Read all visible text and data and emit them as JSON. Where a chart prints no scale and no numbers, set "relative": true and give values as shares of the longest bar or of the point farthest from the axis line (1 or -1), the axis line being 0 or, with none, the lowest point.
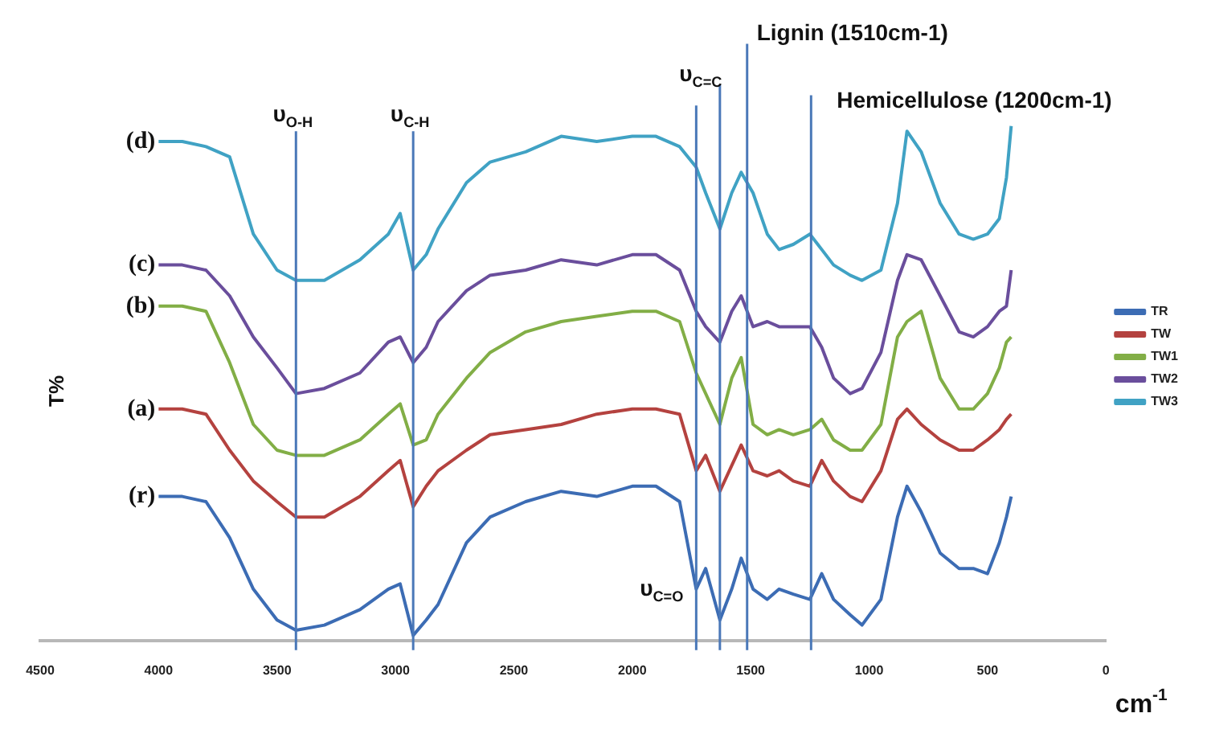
{
  "chart_data": {
    "type": "line",
    "xlabel": "cm$^{-1}$",
    "ylabel": "T%",
    "relative": true,
    "legend": "right",
    "marker": "none",
    "xlim": [
      4500,
      0
    ],
    "xticks": [
      4500,
      4000,
      3500,
      3000,
      2500,
      2000,
      1500,
      1000,
      500,
      0
    ],
    "x": [
      4000,
      3900,
      3800,
      3700,
      3600,
      3500,
      3420,
      3300,
      3150,
      3030,
      2980,
      2925,
      2870,
      2820,
      2700,
      2600,
      2450,
      2300,
      2150,
      2000,
      1900,
      1800,
      1730,
      1690,
      1630,
      1580,
      1540,
      1490,
      1430,
      1380,
      1320,
      1250,
      1200,
      1150,
      1080,
      1030,
      950,
      880,
      840,
      780,
      700,
      620,
      560,
      500,
      450,
      420,
      400
    ],
    "series": [
      {
        "name": "TR",
        "color": "#3c6cb4",
        "values": [
          0.28,
          0.28,
          0.27,
          0.2,
          0.1,
          0.04,
          0.02,
          0.03,
          0.06,
          0.1,
          0.11,
          0.01,
          0.04,
          0.07,
          0.19,
          0.24,
          0.27,
          0.29,
          0.28,
          0.3,
          0.3,
          0.27,
          0.1,
          0.14,
          0.04,
          0.1,
          0.16,
          0.1,
          0.08,
          0.1,
          0.09,
          0.08,
          0.13,
          0.08,
          0.05,
          0.03,
          0.08,
          0.24,
          0.3,
          0.25,
          0.17,
          0.14,
          0.14,
          0.13,
          0.19,
          0.24,
          0.28
        ]
      },
      {
        "name": "TW",
        "color": "#b4423f",
        "values": [
          0.45,
          0.45,
          0.44,
          0.37,
          0.31,
          0.27,
          0.24,
          0.24,
          0.28,
          0.33,
          0.35,
          0.26,
          0.3,
          0.33,
          0.37,
          0.4,
          0.41,
          0.42,
          0.44,
          0.45,
          0.45,
          0.44,
          0.33,
          0.36,
          0.29,
          0.34,
          0.38,
          0.33,
          0.32,
          0.33,
          0.31,
          0.3,
          0.35,
          0.31,
          0.28,
          0.27,
          0.33,
          0.43,
          0.45,
          0.42,
          0.39,
          0.37,
          0.37,
          0.39,
          0.41,
          0.43,
          0.44
        ]
      },
      {
        "name": "TW1",
        "color": "#82ae46",
        "values": [
          0.65,
          0.65,
          0.64,
          0.54,
          0.42,
          0.37,
          0.36,
          0.36,
          0.39,
          0.44,
          0.46,
          0.38,
          0.39,
          0.44,
          0.51,
          0.56,
          0.6,
          0.62,
          0.63,
          0.64,
          0.64,
          0.62,
          0.52,
          0.48,
          0.42,
          0.51,
          0.55,
          0.42,
          0.4,
          0.41,
          0.4,
          0.41,
          0.43,
          0.39,
          0.37,
          0.37,
          0.42,
          0.59,
          0.62,
          0.64,
          0.51,
          0.45,
          0.45,
          0.48,
          0.53,
          0.58,
          0.59
        ]
      },
      {
        "name": "TW2",
        "color": "#6a4e9c",
        "values": [
          0.73,
          0.73,
          0.72,
          0.67,
          0.59,
          0.53,
          0.48,
          0.49,
          0.52,
          0.58,
          0.59,
          0.54,
          0.57,
          0.62,
          0.68,
          0.71,
          0.72,
          0.74,
          0.73,
          0.75,
          0.75,
          0.72,
          0.64,
          0.61,
          0.58,
          0.64,
          0.67,
          0.61,
          0.62,
          0.61,
          0.61,
          0.61,
          0.57,
          0.51,
          0.48,
          0.49,
          0.56,
          0.7,
          0.75,
          0.74,
          0.67,
          0.6,
          0.59,
          0.61,
          0.64,
          0.65,
          0.72
        ]
      },
      {
        "name": "TW3",
        "color": "#40a2c4",
        "values": [
          0.97,
          0.97,
          0.96,
          0.94,
          0.79,
          0.72,
          0.7,
          0.7,
          0.74,
          0.79,
          0.83,
          0.72,
          0.75,
          0.8,
          0.89,
          0.93,
          0.95,
          0.98,
          0.97,
          0.98,
          0.98,
          0.96,
          0.92,
          0.87,
          0.8,
          0.87,
          0.91,
          0.87,
          0.79,
          0.76,
          0.77,
          0.79,
          0.76,
          0.73,
          0.71,
          0.7,
          0.72,
          0.85,
          0.99,
          0.95,
          0.85,
          0.79,
          0.78,
          0.79,
          0.82,
          0.9,
          1.0
        ]
      }
    ],
    "ref_lines": [
      {
        "axis": "x",
        "value": 3420,
        "label": "υ$_{O-H}$",
        "color": "#4a78b8"
      },
      {
        "axis": "x",
        "value": 2925,
        "label": "υ$_{C-H}$",
        "color": "#4a78b8"
      },
      {
        "axis": "x",
        "value": 1730,
        "label": "υ$_{C=O}$",
        "color": "#4a78b8"
      },
      {
        "axis": "x",
        "value": 1630,
        "label": "υ$_{C=C}$",
        "color": "#4a78b8"
      },
      {
        "axis": "x",
        "value": 1515,
        "label": "Lignin (1510cm-1)",
        "color": "#4a78b8"
      },
      {
        "axis": "x",
        "value": 1245,
        "label": "Hemicellulose (1200cm-1)",
        "color": "#4a78b8"
      }
    ],
    "annotations": [
      "(d)",
      "(c)",
      "(b)",
      "(a)",
      "(r)"
    ]
  }
}
